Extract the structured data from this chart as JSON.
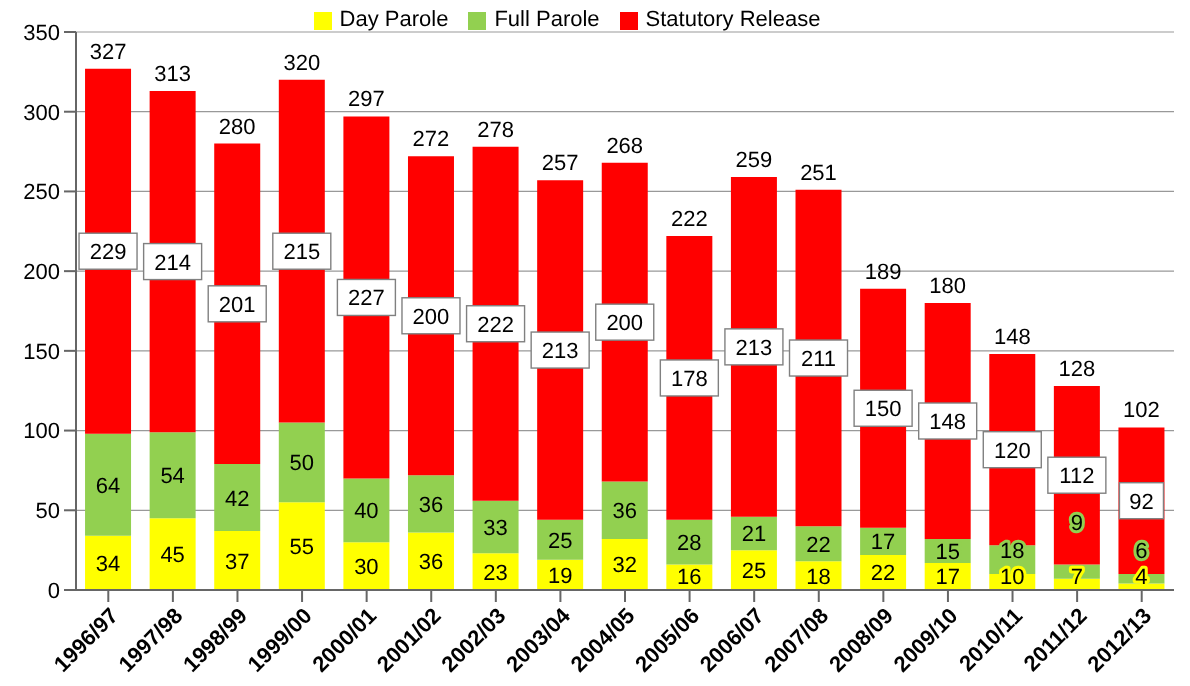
{
  "chart_data": {
    "type": "bar",
    "stacked": true,
    "categories": [
      "1996/97",
      "1997/98",
      "1998/99",
      "1999/00",
      "2000/01",
      "2001/02",
      "2002/03",
      "2003/04",
      "2004/05",
      "2005/06",
      "2006/07",
      "2007/08",
      "2008/09",
      "2009/10",
      "2010/11",
      "2011/12",
      "2012/13"
    ],
    "series": [
      {
        "name": "Day Parole",
        "color": "#ffff00",
        "values": [
          34,
          45,
          37,
          55,
          30,
          36,
          23,
          19,
          32,
          16,
          25,
          18,
          22,
          17,
          10,
          7,
          4
        ]
      },
      {
        "name": "Full Parole",
        "color": "#92d050",
        "values": [
          64,
          54,
          42,
          50,
          40,
          36,
          33,
          25,
          36,
          28,
          21,
          22,
          17,
          15,
          18,
          9,
          6
        ]
      },
      {
        "name": "Statutory Release",
        "color": "#ff0000",
        "values": [
          229,
          214,
          201,
          215,
          227,
          200,
          222,
          213,
          200,
          178,
          213,
          211,
          150,
          148,
          120,
          112,
          92
        ]
      }
    ],
    "totals": [
      "327",
      "313",
      "280",
      "320",
      "297",
      "272",
      "278",
      "257",
      "268",
      "222",
      "259",
      "251",
      "189",
      "180",
      "148",
      "128",
      "102"
    ],
    "ylim": [
      0,
      350
    ],
    "yticks": [
      0,
      50,
      100,
      150,
      200,
      250,
      300,
      350
    ],
    "grid": "y",
    "legend": "top",
    "data_labels": true
  }
}
